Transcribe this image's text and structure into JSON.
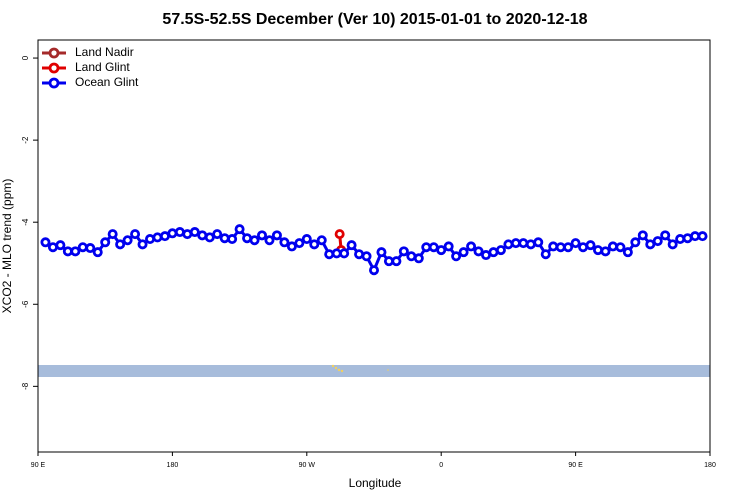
{
  "chart_data": {
    "type": "line",
    "title": "57.5S-52.5S December (Ver 10)   2015-01-01 to 2020-12-18",
    "x_label": "Longitude",
    "y_label": "XCO2 - MLO trend (ppm)",
    "xlim": [
      90,
      540
    ],
    "xticks": [
      {
        "value": 90,
        "label": "90 E"
      },
      {
        "value": 180,
        "label": "180"
      },
      {
        "value": 270,
        "label": "90 W"
      },
      {
        "value": 360,
        "label": "0"
      },
      {
        "value": 450,
        "label": "90 E"
      },
      {
        "value": 540,
        "label": "180"
      }
    ],
    "ylim": [
      -9.6,
      0.44
    ],
    "yticks": [
      0,
      -2,
      -4,
      -6,
      -8
    ],
    "legend": "top-left",
    "series": [
      {
        "name": "Land Nadir",
        "color": "#a52a2a",
        "x": [
          293
        ],
        "values": [
          -4.68
        ]
      },
      {
        "name": "Land Glint",
        "color": "#e00000",
        "x": [
          292,
          293
        ],
        "values": [
          -4.29,
          -4.68
        ]
      },
      {
        "name": "Ocean Glint",
        "color": "#0000ee",
        "x": [
          95,
          100,
          105,
          110,
          115,
          120,
          125,
          130,
          135,
          140,
          145,
          150,
          155,
          160,
          165,
          170,
          175,
          180,
          185,
          190,
          195,
          200,
          205,
          210,
          215,
          220,
          225,
          230,
          235,
          240,
          245,
          250,
          255,
          260,
          265,
          270,
          275,
          280,
          285,
          290,
          295,
          300,
          305,
          310,
          315,
          320,
          325,
          330,
          335,
          340,
          345,
          350,
          355,
          360,
          365,
          370,
          375,
          380,
          385,
          390,
          395,
          400,
          405,
          410,
          415,
          420,
          425,
          430,
          435,
          440,
          445,
          450,
          455,
          460,
          465,
          470,
          475,
          480,
          485,
          490,
          495,
          500,
          505,
          510,
          515,
          520,
          525,
          530,
          535
        ],
        "values": [
          -4.49,
          -4.61,
          -4.56,
          -4.71,
          -4.71,
          -4.61,
          -4.63,
          -4.73,
          -4.49,
          -4.29,
          -4.54,
          -4.44,
          -4.29,
          -4.54,
          -4.41,
          -4.37,
          -4.34,
          -4.27,
          -4.24,
          -4.29,
          -4.24,
          -4.32,
          -4.37,
          -4.29,
          -4.39,
          -4.41,
          -4.17,
          -4.39,
          -4.44,
          -4.32,
          -4.44,
          -4.32,
          -4.49,
          -4.59,
          -4.51,
          -4.41,
          -4.54,
          -4.44,
          -4.78,
          -4.76,
          -4.76,
          -4.56,
          -4.78,
          -4.83,
          -5.17,
          -4.73,
          -4.95,
          -4.95,
          -4.71,
          -4.83,
          -4.88,
          -4.61,
          -4.61,
          -4.68,
          -4.59,
          -4.83,
          -4.73,
          -4.59,
          -4.71,
          -4.8,
          -4.73,
          -4.68,
          -4.54,
          -4.51,
          -4.51,
          -4.54,
          -4.49,
          -4.78,
          -4.59,
          -4.61,
          -4.61,
          -4.51,
          -4.61,
          -4.56,
          -4.68,
          -4.71,
          -4.59,
          -4.61,
          -4.73,
          -4.49,
          -4.32,
          -4.54,
          -4.46,
          -4.32,
          -4.54,
          -4.41,
          -4.39,
          -4.34,
          -4.34
        ]
      }
    ]
  }
}
